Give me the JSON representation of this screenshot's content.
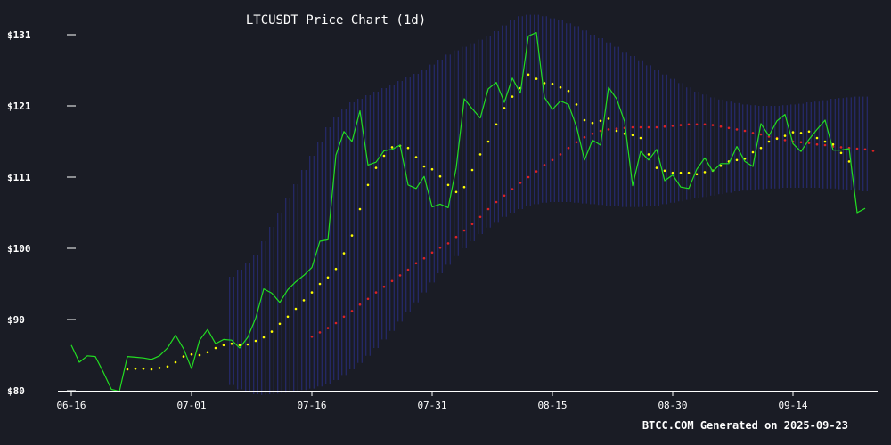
{
  "chart_data": {
    "type": "line",
    "title": "LTCUSDT Price Chart (1d)",
    "footer": "BTCC.COM Generated on 2025-09-23",
    "x_tick_labels": [
      "06-16",
      "07-01",
      "07-16",
      "07-31",
      "08-15",
      "08-30",
      "09-14"
    ],
    "y_tick_labels": [
      "$80",
      "$90",
      "$100",
      "$111",
      "$121",
      "$131"
    ],
    "ylim": [
      80,
      131
    ],
    "grid": false,
    "colors": {
      "background": "#1a1c25",
      "price": "#22dd22",
      "short_ma": "#ffff00",
      "long_ma": "#dd2222",
      "band": "#2a2f8a",
      "axis": "#ffffff"
    },
    "series": [
      {
        "key": "price",
        "values": [
          86.4,
          84.0,
          84.9,
          84.8,
          82.6,
          80.2,
          79.9,
          84.8,
          84.7,
          84.6,
          84.4,
          84.9,
          86.0,
          87.8,
          85.9,
          83.1,
          87.1,
          88.6,
          86.6,
          87.2,
          87.1,
          86.0,
          87.5,
          90.2,
          94.3,
          93.7,
          92.4,
          94.2,
          95.3,
          96.2,
          97.3,
          101.0,
          101.2,
          113.1,
          116.4,
          115.0,
          119.3,
          111.7,
          112.1,
          113.7,
          113.9,
          114.5,
          108.9,
          108.4,
          110.1,
          105.8,
          106.2,
          105.7,
          111.3,
          121.0,
          119.6,
          118.3,
          122.4,
          123.3,
          120.5,
          123.9,
          121.8,
          129.8,
          130.3,
          121.2,
          119.5,
          120.7,
          120.2,
          117.1,
          112.4,
          115.2,
          114.5,
          122.6,
          121.0,
          117.8,
          108.8,
          113.6,
          112.4,
          113.9,
          109.5,
          110.3,
          108.6,
          108.4,
          111.1,
          112.7,
          110.8,
          111.9,
          111.9,
          114.3,
          112.2,
          111.5,
          117.5,
          115.8,
          117.9,
          118.8,
          114.7,
          113.6,
          115.3,
          116.7,
          118.0,
          113.8,
          113.8,
          114.0,
          105.0,
          105.6
        ]
      },
      {
        "key": "short_ma",
        "start_index": 7,
        "values": [
          83.0,
          83.1,
          83.1,
          83.0,
          83.2,
          83.4,
          84.0,
          84.8,
          85.1,
          85.0,
          85.4,
          86.0,
          86.4,
          86.6,
          86.4,
          86.5,
          87.0,
          87.5,
          88.3,
          89.4,
          90.4,
          91.5,
          92.7,
          93.8,
          95.0,
          95.9,
          97.1,
          99.3,
          101.8,
          105.5,
          108.9,
          111.3,
          113.0,
          114.2,
          114.4,
          114.1,
          112.8,
          111.5,
          111.1,
          110.1,
          108.9,
          107.9,
          108.6,
          111.0,
          113.2,
          115.0,
          117.4,
          119.7,
          121.3,
          122.5,
          124.4,
          123.8,
          123.2,
          123.1,
          122.6,
          122.1,
          120.2,
          118.0,
          117.6,
          117.9,
          118.2,
          116.5,
          116.1,
          115.9,
          115.5,
          113.2,
          111.3,
          110.9,
          110.6,
          110.6,
          110.6,
          110.4,
          110.7,
          110.9,
          111.6,
          112.2,
          112.4,
          112.6,
          113.5,
          114.1,
          115.0,
          115.4,
          115.8,
          116.3,
          116.2,
          116.4,
          115.5,
          115.0,
          114.6,
          113.4,
          112.2
        ]
      },
      {
        "key": "long_ma",
        "start_index": 30,
        "values": [
          87.6,
          88.2,
          88.8,
          89.5,
          90.4,
          91.2,
          92.1,
          92.9,
          93.8,
          94.6,
          95.4,
          96.2,
          97.0,
          97.9,
          98.6,
          99.4,
          100.1,
          100.7,
          101.6,
          102.5,
          103.4,
          104.4,
          105.5,
          106.5,
          107.4,
          108.3,
          109.2,
          110.0,
          110.8,
          111.7,
          112.4,
          113.2,
          114.1,
          114.9,
          115.6,
          116.1,
          116.5,
          116.7,
          116.8,
          116.9,
          117.0,
          117.0,
          117.0,
          117.0,
          117.1,
          117.2,
          117.3,
          117.4,
          117.4,
          117.4,
          117.3,
          117.1,
          116.9,
          116.7,
          116.5,
          116.2,
          116.0,
          115.7,
          115.5,
          115.2,
          115.0,
          114.9,
          114.8,
          114.6,
          114.5,
          114.3,
          114.2,
          114.1,
          114.0,
          113.9,
          113.7
        ]
      },
      {
        "key": "band",
        "start_index": 20,
        "upper": [
          96,
          97,
          98,
          99,
          101,
          103,
          105,
          107,
          109,
          111,
          113,
          115,
          117,
          118.5,
          119.5,
          120.5,
          121,
          121.5,
          122,
          122.5,
          123,
          123.5,
          124,
          124.5,
          125,
          125.8,
          126.5,
          127.2,
          127.8,
          128.3,
          128.8,
          129.3,
          129.8,
          130.5,
          131.3,
          132,
          132.6,
          132.8,
          132.8,
          132.6,
          132.3,
          132,
          131.6,
          131.2,
          130.6,
          130,
          129.5,
          128.9,
          128.3,
          127.6,
          127,
          126.4,
          125.7,
          125,
          124.4,
          123.8,
          123.2,
          122.6,
          122,
          121.6,
          121.2,
          120.9,
          120.6,
          120.4,
          120.2,
          120.1,
          120,
          120,
          120,
          120.1,
          120.2,
          120.3,
          120.5,
          120.6,
          120.8,
          121,
          121.1,
          121.2,
          121.3,
          121.3
        ],
        "lower": [
          80.8,
          80.2,
          79.8,
          79.5,
          79.4,
          79.5,
          79.6,
          79.7,
          79.9,
          80.1,
          80.3,
          80.6,
          81,
          81.5,
          82.2,
          83,
          83.9,
          84.9,
          86,
          87.2,
          88.4,
          89.7,
          91,
          92.4,
          93.8,
          95.2,
          96.5,
          97.7,
          98.9,
          100,
          101,
          102,
          102.9,
          103.7,
          104.4,
          105,
          105.5,
          105.9,
          106.2,
          106.4,
          106.5,
          106.5,
          106.5,
          106.4,
          106.3,
          106.2,
          106.1,
          106,
          105.9,
          105.8,
          105.8,
          105.8,
          105.9,
          106,
          106.2,
          106.4,
          106.6,
          106.8,
          107,
          107.2,
          107.4,
          107.6,
          107.8,
          108,
          108.1,
          108.2,
          108.3,
          108.4,
          108.4,
          108.5,
          108.5,
          108.5,
          108.5,
          108.5,
          108.4,
          108.4,
          108.3,
          108.2,
          108.1,
          108
        ]
      }
    ]
  }
}
